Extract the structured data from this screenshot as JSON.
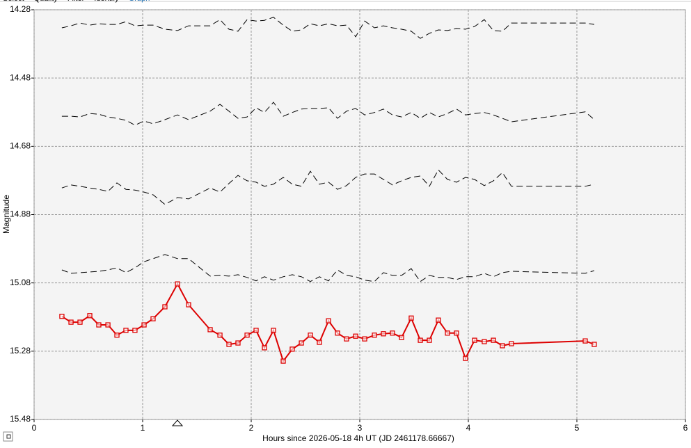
{
  "tabs": [
    "Select",
    "Quality",
    "Filter",
    "Identify",
    "Graph"
  ],
  "chart_data": {
    "type": "line",
    "xlabel": "Hours since 2026-05-18 4h UT (JD 2461178.66667)",
    "ylabel": "Magnitude",
    "xlim": [
      0,
      6
    ],
    "xticks": [
      0,
      1,
      2,
      3,
      4,
      5,
      6
    ],
    "ylim": [
      14.28,
      15.48
    ],
    "yticks": [
      14.28,
      14.48,
      14.68,
      14.88,
      15.08,
      15.28,
      15.48
    ],
    "y_inverted": true,
    "grid": true,
    "x": [
      0.256,
      0.34,
      0.423,
      0.513,
      0.596,
      0.68,
      0.763,
      0.846,
      0.929,
      1.013,
      1.096,
      1.205,
      1.321,
      1.423,
      1.622,
      1.712,
      1.795,
      1.878,
      1.962,
      2.045,
      2.122,
      2.205,
      2.295,
      2.378,
      2.462,
      2.545,
      2.628,
      2.712,
      2.795,
      2.878,
      2.962,
      3.045,
      3.135,
      3.218,
      3.301,
      3.385,
      3.474,
      3.558,
      3.641,
      3.724,
      3.808,
      3.891,
      3.974,
      4.058,
      4.147,
      4.231,
      4.314,
      4.397,
      5.077,
      5.16
    ],
    "series": [
      {
        "color": "#000000",
        "dashed": true,
        "markers": false,
        "values": [
          14.333,
          14.327,
          14.319,
          14.325,
          14.321,
          14.323,
          14.323,
          14.315,
          14.327,
          14.325,
          14.325,
          14.337,
          14.341,
          14.327,
          14.327,
          14.309,
          14.337,
          14.343,
          14.309,
          14.313,
          14.311,
          14.302,
          14.325,
          14.343,
          14.339,
          14.321,
          14.327,
          14.321,
          14.327,
          14.325,
          14.359,
          14.313,
          14.333,
          14.327,
          14.333,
          14.337,
          14.343,
          14.364,
          14.349,
          14.339,
          14.341,
          14.335,
          14.337,
          14.329,
          14.309,
          14.341,
          14.343,
          14.319,
          14.319,
          14.323
        ]
      },
      {
        "color": "#000000",
        "dashed": true,
        "markers": false,
        "values": [
          14.592,
          14.592,
          14.594,
          14.584,
          14.586,
          14.594,
          14.598,
          14.604,
          14.618,
          14.606,
          14.614,
          14.602,
          14.588,
          14.602,
          14.577,
          14.557,
          14.577,
          14.598,
          14.594,
          14.567,
          14.581,
          14.551,
          14.592,
          14.581,
          14.571,
          14.569,
          14.569,
          14.567,
          14.598,
          14.577,
          14.569,
          14.588,
          14.581,
          14.571,
          14.588,
          14.594,
          14.581,
          14.598,
          14.581,
          14.594,
          14.584,
          14.571,
          14.588,
          14.584,
          14.581,
          14.588,
          14.598,
          14.608,
          14.579,
          14.602
        ]
      },
      {
        "color": "#000000",
        "dashed": true,
        "markers": false,
        "values": [
          14.802,
          14.793,
          14.797,
          14.802,
          14.806,
          14.812,
          14.787,
          14.806,
          14.808,
          14.814,
          14.822,
          14.85,
          14.83,
          14.834,
          14.802,
          14.814,
          14.789,
          14.765,
          14.781,
          14.785,
          14.797,
          14.791,
          14.771,
          14.791,
          14.797,
          14.753,
          14.791,
          14.785,
          14.806,
          14.795,
          14.771,
          14.761,
          14.761,
          14.777,
          14.793,
          14.781,
          14.771,
          14.767,
          14.797,
          14.749,
          14.777,
          14.785,
          14.771,
          14.777,
          14.795,
          14.781,
          14.757,
          14.797,
          14.797,
          14.791
        ]
      },
      {
        "color": "#000000",
        "dashed": true,
        "markers": false,
        "values": [
          15.042,
          15.052,
          15.05,
          15.048,
          15.046,
          15.042,
          15.036,
          15.05,
          15.036,
          15.018,
          15.009,
          14.997,
          15.009,
          15.009,
          15.06,
          15.058,
          15.06,
          15.056,
          15.064,
          15.074,
          15.062,
          15.072,
          15.062,
          15.056,
          15.062,
          15.076,
          15.062,
          15.074,
          15.042,
          15.058,
          15.062,
          15.072,
          15.076,
          15.05,
          15.058,
          15.058,
          15.038,
          15.076,
          15.058,
          15.064,
          15.064,
          15.07,
          15.062,
          15.062,
          15.052,
          15.062,
          15.05,
          15.046,
          15.052,
          15.044
        ]
      },
      {
        "color": "#dd0000",
        "dashed": false,
        "markers": true,
        "values": [
          15.178,
          15.195,
          15.195,
          15.176,
          15.203,
          15.203,
          15.233,
          15.219,
          15.219,
          15.203,
          15.185,
          15.15,
          15.083,
          15.144,
          15.217,
          15.233,
          15.26,
          15.256,
          15.233,
          15.219,
          15.27,
          15.219,
          15.309,
          15.274,
          15.256,
          15.233,
          15.254,
          15.191,
          15.227,
          15.244,
          15.236,
          15.244,
          15.233,
          15.229,
          15.227,
          15.24,
          15.183,
          15.248,
          15.248,
          15.189,
          15.227,
          15.227,
          15.301,
          15.248,
          15.252,
          15.248,
          15.264,
          15.258,
          15.25,
          15.26
        ]
      }
    ]
  }
}
